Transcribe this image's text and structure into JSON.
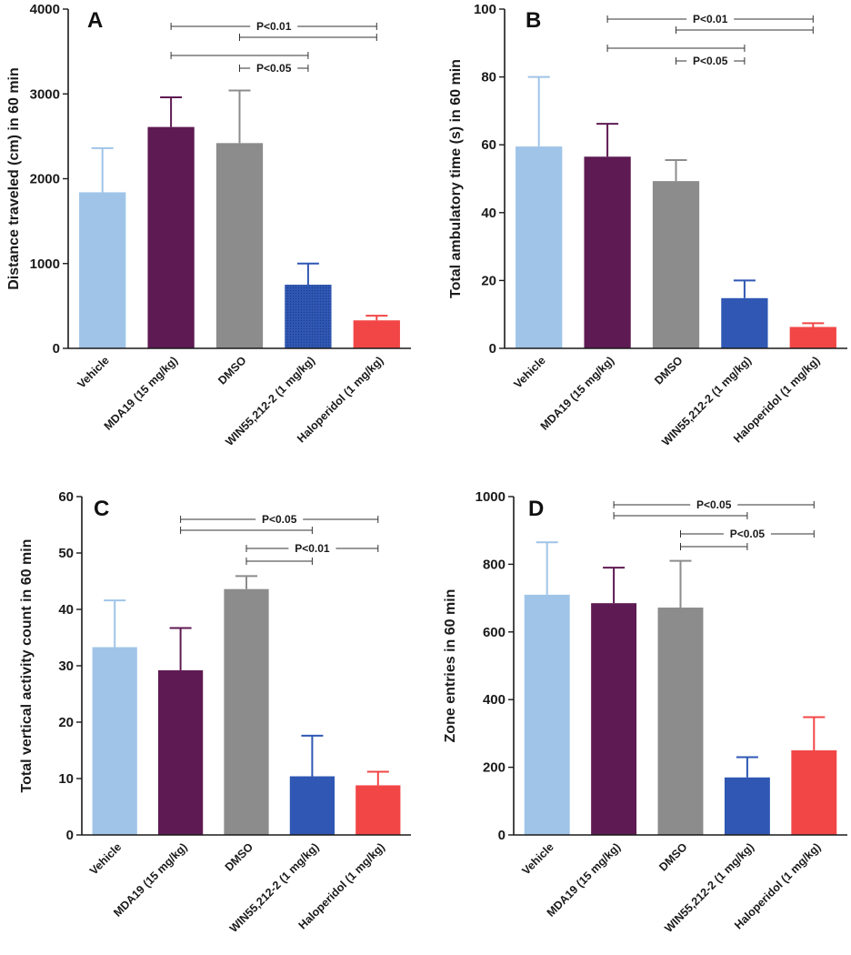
{
  "chart_data": [
    {
      "type": "bar",
      "panel": "A",
      "categories": [
        "Vehicle",
        "MDA19 (15 mg/kg)",
        "DMSO",
        "WIN55,212-2 (1 mg/kg)",
        "Haloperidol (1 mg/kg)"
      ],
      "values": [
        1840,
        2610,
        2420,
        750,
        330
      ],
      "errors": [
        520,
        350,
        620,
        250,
        55
      ],
      "colors": [
        "#9fc4e8",
        "#5e1a52",
        "#8c8c8c",
        "#2f57b3",
        "#f24646"
      ],
      "ylabel": "Distance traveled (cm) in 60 min",
      "ylim": [
        0,
        4000
      ],
      "yticks": [
        0,
        1000,
        2000,
        3000,
        4000
      ],
      "significance": [
        {
          "from": 1,
          "to": 4,
          "label": "P<0.01"
        },
        {
          "from": 2,
          "to": 4,
          "label": ""
        },
        {
          "from": 1,
          "to": 3,
          "label": ""
        },
        {
          "from": 2,
          "to": 3,
          "label": "P<0.05"
        }
      ]
    },
    {
      "type": "bar",
      "panel": "B",
      "categories": [
        "Vehicle",
        "MDA19 (15 mg/kg)",
        "DMSO",
        "WIN55,212-2 (1 mg/kg)",
        "Haloperidol (1 mg/kg)"
      ],
      "values": [
        59.5,
        56.5,
        49.3,
        14.8,
        6.3
      ],
      "errors": [
        20.5,
        9.7,
        6.2,
        5.2,
        1.1
      ],
      "colors": [
        "#9fc4e8",
        "#5e1a52",
        "#8c8c8c",
        "#2f57b3",
        "#f24646"
      ],
      "ylabel": "Total ambulatory time (s) in 60 min",
      "ylim": [
        0,
        100
      ],
      "yticks": [
        0,
        20,
        40,
        60,
        80,
        100
      ],
      "significance": [
        {
          "from": 1,
          "to": 4,
          "label": "P<0.01"
        },
        {
          "from": 2,
          "to": 4,
          "label": ""
        },
        {
          "from": 1,
          "to": 3,
          "label": ""
        },
        {
          "from": 2,
          "to": 3,
          "label": "P<0.05"
        }
      ]
    },
    {
      "type": "bar",
      "panel": "C",
      "categories": [
        "Vehicle",
        "MDA19 (15 mg/kg)",
        "DMSO",
        "WIN55,212-2 (1 mg/kg)",
        "Haloperidol (1 mg/kg)"
      ],
      "values": [
        33.3,
        29.2,
        43.6,
        10.4,
        8.8
      ],
      "errors": [
        8.3,
        7.5,
        2.3,
        7.2,
        2.4
      ],
      "colors": [
        "#9fc4e8",
        "#5e1a52",
        "#8c8c8c",
        "#2f57b3",
        "#f24646"
      ],
      "ylabel": "Total vertical activity count in 60 min",
      "ylim": [
        0,
        60
      ],
      "yticks": [
        0,
        10,
        20,
        30,
        40,
        50,
        60
      ],
      "significance": [
        {
          "from": 1,
          "to": 4,
          "label": "P<0.05"
        },
        {
          "from": 1,
          "to": 3,
          "label": ""
        },
        {
          "from": 2,
          "to": 4,
          "label": "P<0.01"
        },
        {
          "from": 2,
          "to": 3,
          "label": ""
        }
      ]
    },
    {
      "type": "bar",
      "panel": "D",
      "categories": [
        "Vehicle",
        "MDA19 (15 mg/kg)",
        "DMSO",
        "WIN55,212-2 (1 mg/kg)",
        "Haloperidol (1 mg/kg)"
      ],
      "values": [
        710,
        685,
        672,
        170,
        250
      ],
      "errors": [
        155,
        105,
        138,
        60,
        98
      ],
      "colors": [
        "#9fc4e8",
        "#5e1a52",
        "#8c8c8c",
        "#2f57b3",
        "#f24646"
      ],
      "ylabel": "Zone entries in 60 min",
      "ylim": [
        0,
        1000
      ],
      "yticks": [
        0,
        200,
        400,
        600,
        800,
        1000
      ],
      "significance": [
        {
          "from": 1,
          "to": 4,
          "label": "P<0.05"
        },
        {
          "from": 1,
          "to": 3,
          "label": ""
        },
        {
          "from": 2,
          "to": 4,
          "label": "P<0.05"
        },
        {
          "from": 2,
          "to": 3,
          "label": ""
        }
      ]
    }
  ]
}
